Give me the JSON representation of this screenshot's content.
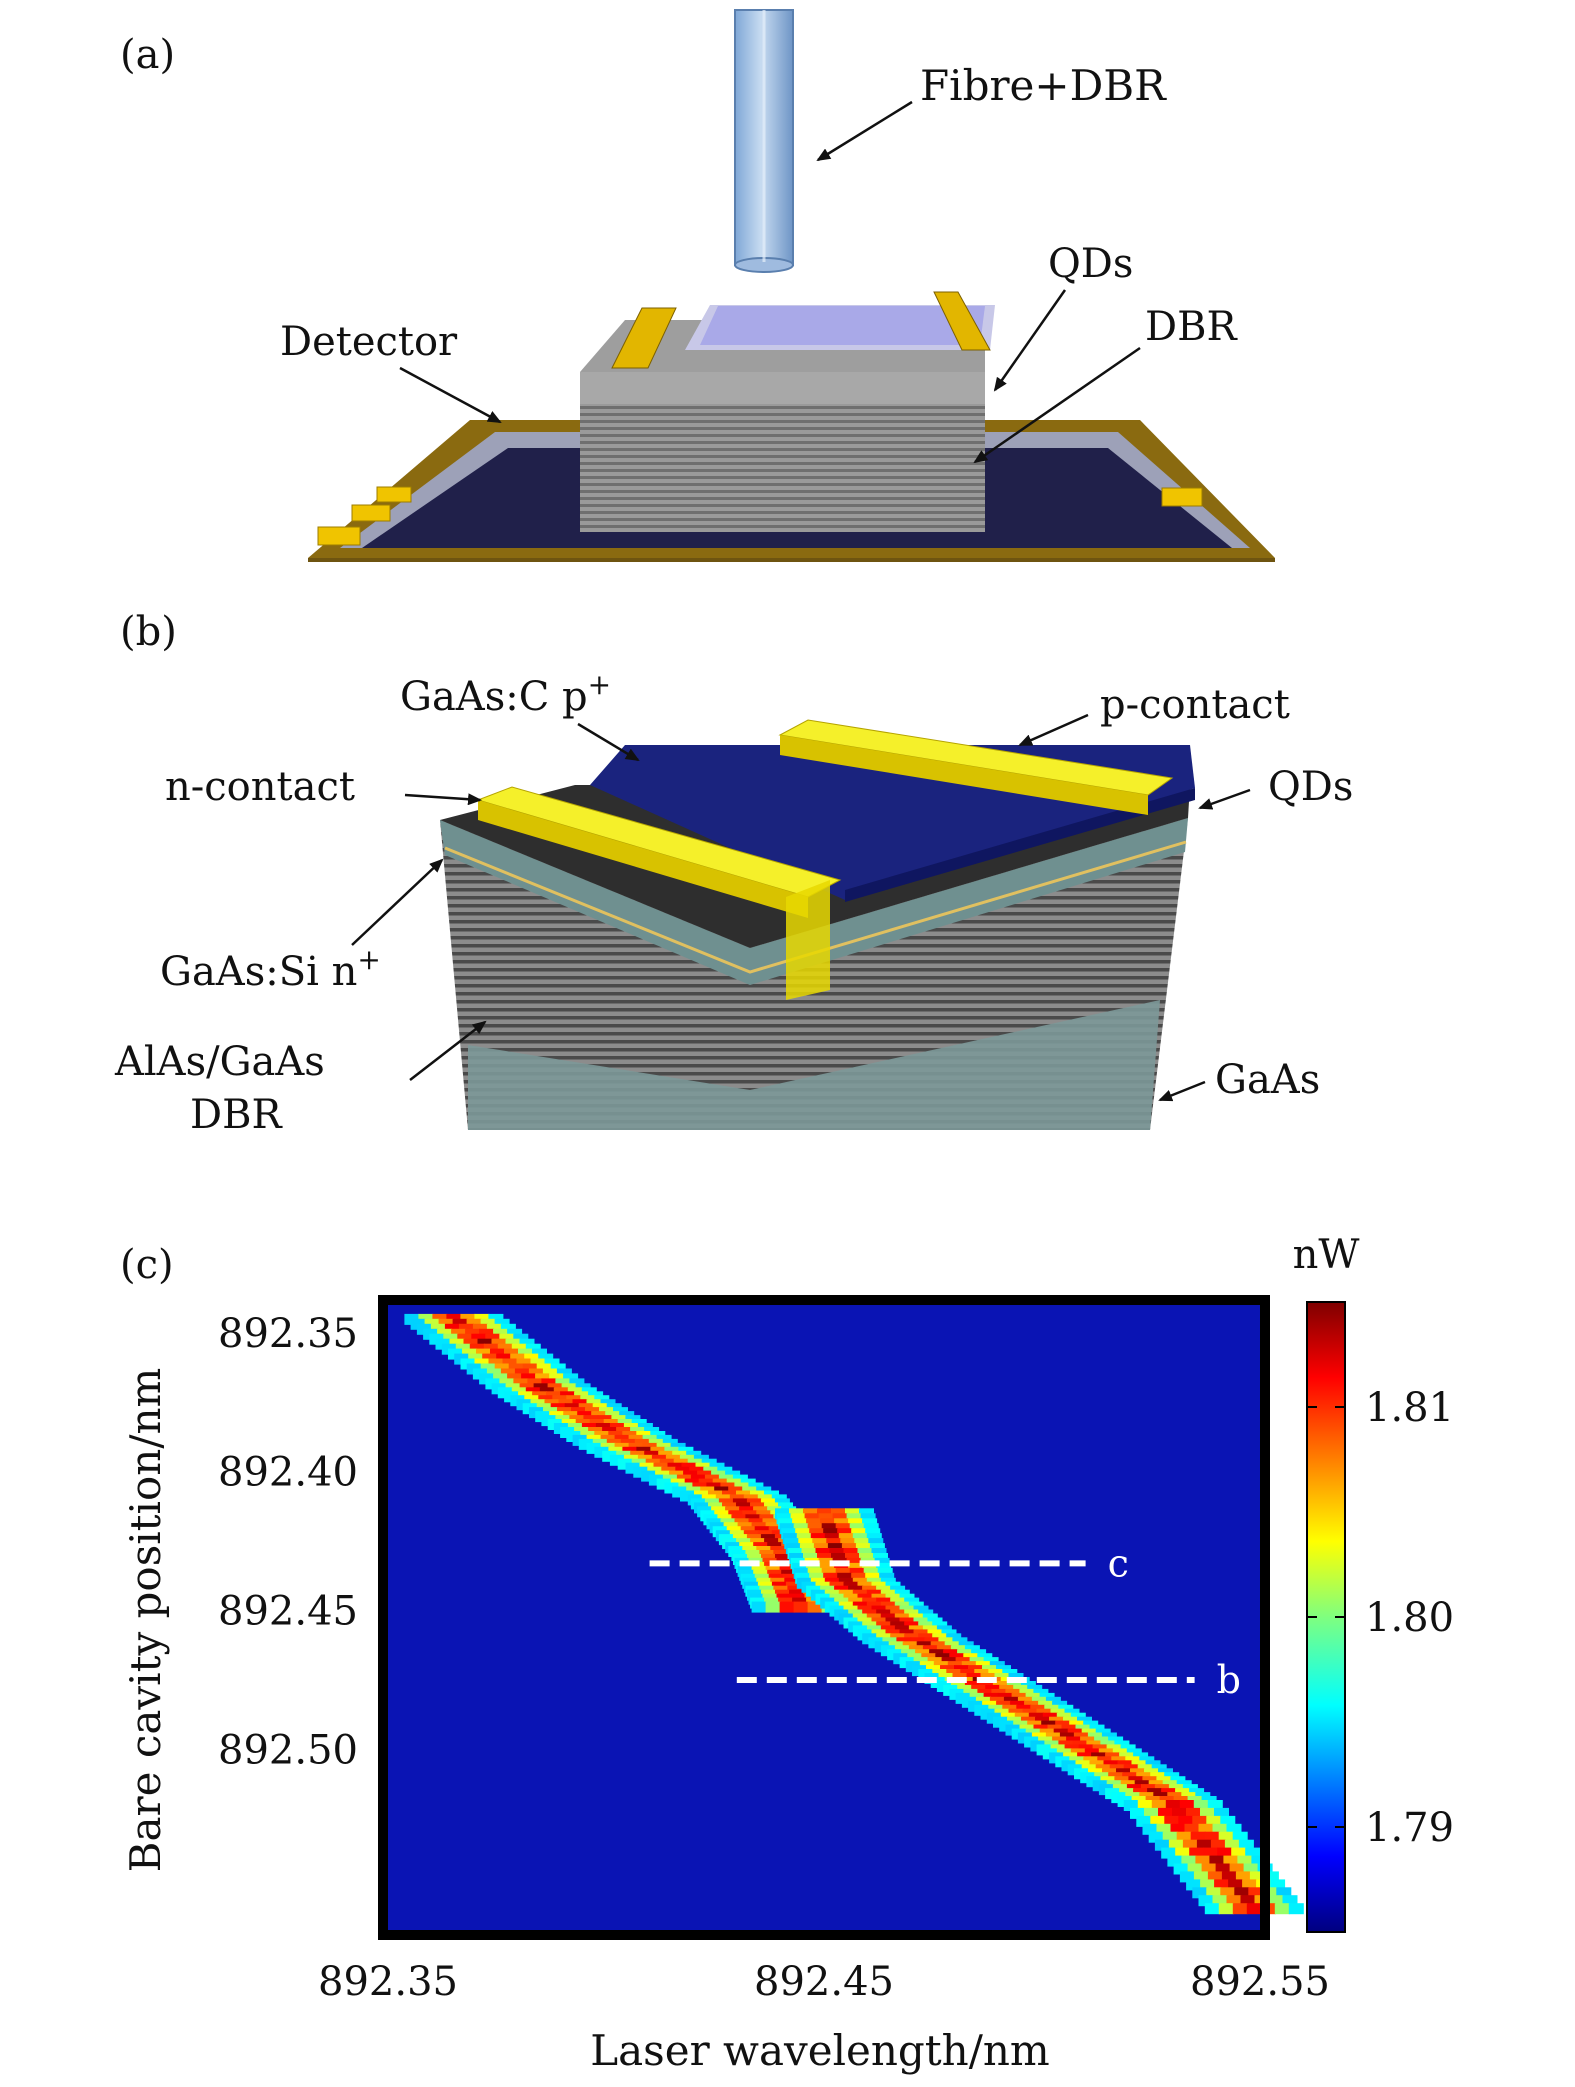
{
  "figure": {
    "panels": {
      "a": {
        "label": "(a)",
        "annotations": {
          "fibre": "Fibre+DBR",
          "qds": "QDs",
          "dbr": "DBR",
          "detector": "Detector"
        }
      },
      "b": {
        "label": "(b)",
        "annotations": {
          "p_doped": "GaAs:C p",
          "p_doped_sup": "+",
          "p_contact": "p-contact",
          "n_contact": "n-contact",
          "qds": "QDs",
          "n_doped": "GaAs:Si n",
          "n_doped_sup": "+",
          "dbr_line1": "AlAs/GaAs",
          "dbr_line2": "DBR",
          "substrate": "GaAs"
        }
      },
      "c": {
        "label": "(c)",
        "line_labels": {
          "c": "c",
          "b": "b"
        }
      }
    }
  },
  "chart_data": {
    "type": "heatmap",
    "xlabel": "Laser wavelength/nm",
    "ylabel": "Bare cavity position/nm",
    "x_ticks": [
      "892.35",
      "892.45",
      "892.55"
    ],
    "x_tick_values": [
      892.35,
      892.45,
      892.55
    ],
    "y_ticks": [
      "892.35",
      "892.40",
      "892.45",
      "892.50"
    ],
    "y_tick_values": [
      892.35,
      892.4,
      892.45,
      892.5
    ],
    "xlim": [
      892.35,
      892.55
    ],
    "ylim": [
      892.34,
      892.565
    ],
    "colorbar": {
      "unit": "nW",
      "ticks": [
        "1.81",
        "1.80",
        "1.79"
      ],
      "tick_values": [
        1.81,
        1.8,
        1.79
      ],
      "range": [
        1.785,
        1.815
      ],
      "colormap": "jet"
    },
    "anticrossing_branches": [
      {
        "name": "upper",
        "points": [
          [
            892.365,
            892.345
          ],
          [
            892.385,
            892.37
          ],
          [
            892.405,
            892.39
          ],
          [
            892.43,
            892.41
          ],
          [
            892.44,
            892.43
          ],
          [
            892.445,
            892.45
          ]
        ]
      },
      {
        "name": "lower",
        "points": [
          [
            892.45,
            892.415
          ],
          [
            892.455,
            892.44
          ],
          [
            892.47,
            892.46
          ],
          [
            892.49,
            892.48
          ],
          [
            892.51,
            892.5
          ],
          [
            892.53,
            892.52
          ],
          [
            892.55,
            892.56
          ]
        ]
      }
    ],
    "dashed_lines": [
      {
        "label": "c",
        "y": 892.433,
        "x_range": [
          892.41,
          892.51
        ]
      },
      {
        "label": "b",
        "y": 892.475,
        "x_range": [
          892.43,
          892.535
        ]
      }
    ]
  }
}
